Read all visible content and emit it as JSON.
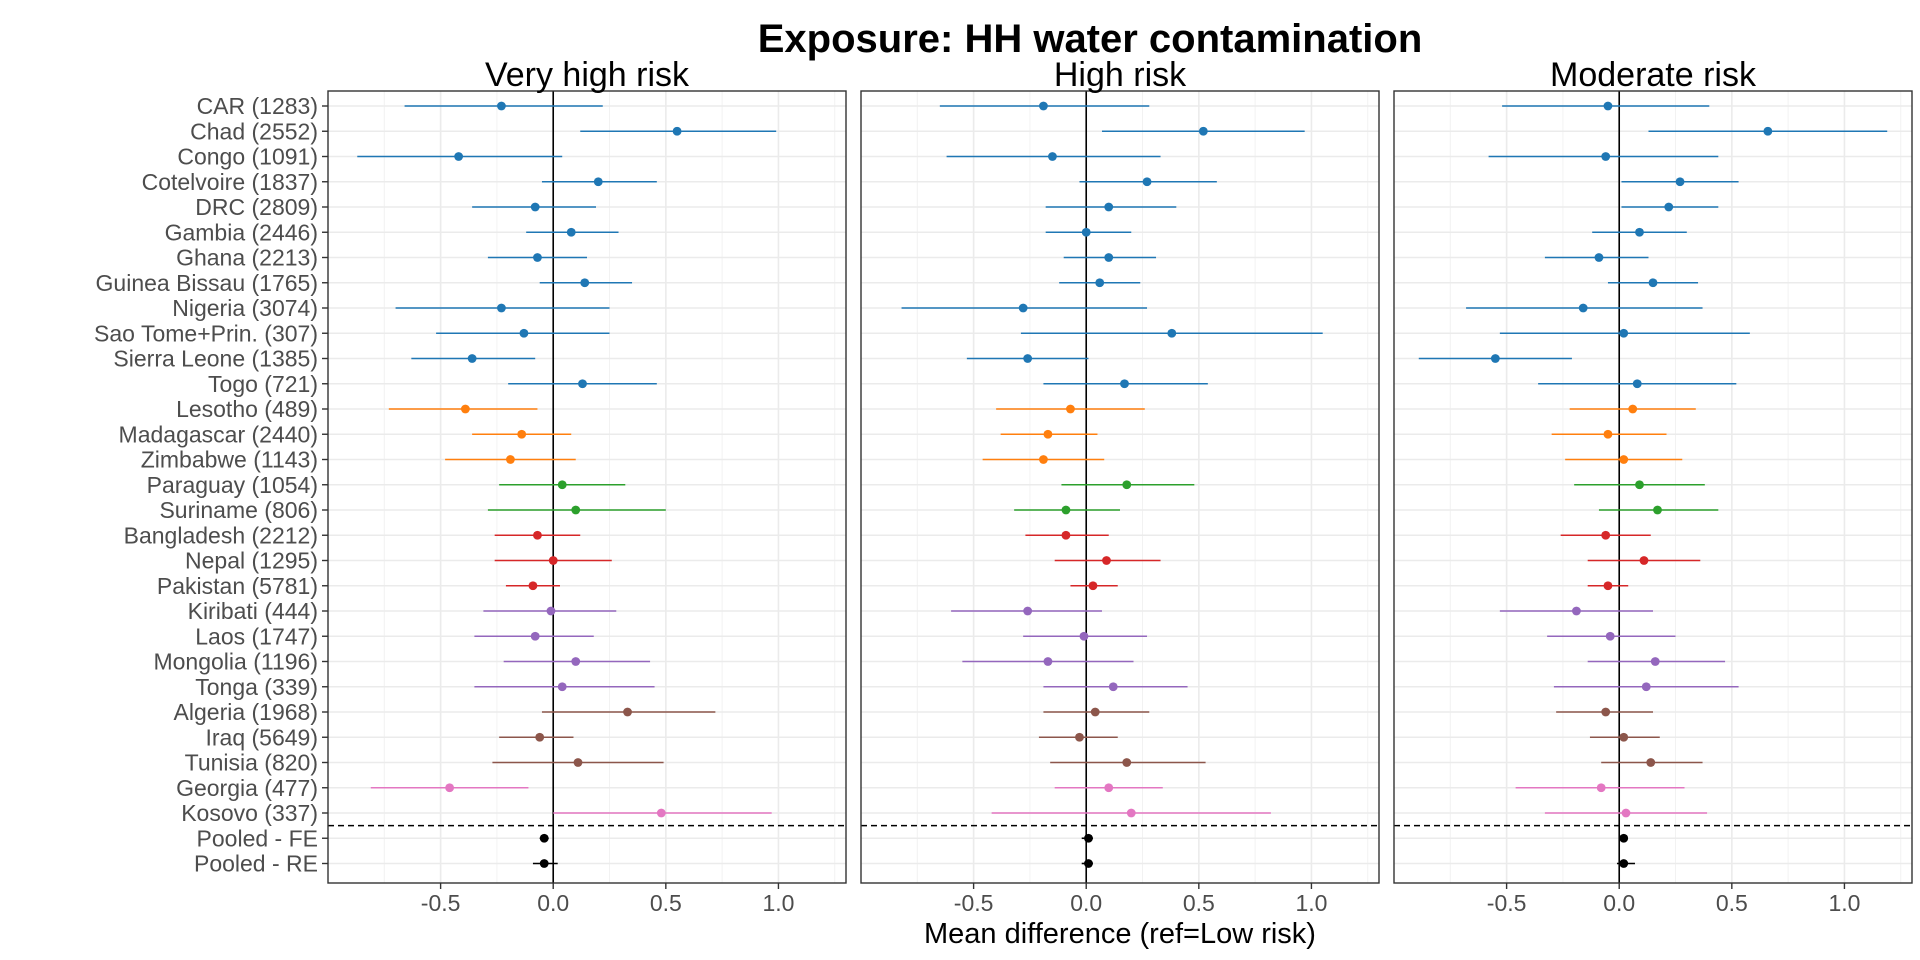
{
  "chart_data": {
    "type": "forest",
    "title": "Exposure: HH water contamination",
    "xlabel": "Mean difference (ref=Low risk)",
    "xlim": [
      -1.0,
      1.3
    ],
    "xticks": [
      -0.5,
      0.0,
      0.5,
      1.0
    ],
    "xtick_labels": [
      "-0.5",
      "0.0",
      "0.5",
      "1.0"
    ],
    "grid": true,
    "reference_line": 0,
    "separator_after_row": "Kosovo (337)",
    "rows": [
      {
        "label": "CAR (1283)",
        "color": "#1f77b4"
      },
      {
        "label": "Chad (2552)",
        "color": "#1f77b4"
      },
      {
        "label": "Congo (1091)",
        "color": "#1f77b4"
      },
      {
        "label": "Cotelvoire (1837)",
        "color": "#1f77b4"
      },
      {
        "label": "DRC (2809)",
        "color": "#1f77b4"
      },
      {
        "label": "Gambia (2446)",
        "color": "#1f77b4"
      },
      {
        "label": "Ghana (2213)",
        "color": "#1f77b4"
      },
      {
        "label": "Guinea Bissau (1765)",
        "color": "#1f77b4"
      },
      {
        "label": "Nigeria (3074)",
        "color": "#1f77b4"
      },
      {
        "label": "Sao Tome+Prin. (307)",
        "color": "#1f77b4"
      },
      {
        "label": "Sierra Leone (1385)",
        "color": "#1f77b4"
      },
      {
        "label": "Togo (721)",
        "color": "#1f77b4"
      },
      {
        "label": "Lesotho (489)",
        "color": "#ff7f0e"
      },
      {
        "label": "Madagascar (2440)",
        "color": "#ff7f0e"
      },
      {
        "label": "Zimbabwe (1143)",
        "color": "#ff7f0e"
      },
      {
        "label": "Paraguay (1054)",
        "color": "#2ca02c"
      },
      {
        "label": "Suriname (806)",
        "color": "#2ca02c"
      },
      {
        "label": "Bangladesh (2212)",
        "color": "#d62728"
      },
      {
        "label": "Nepal (1295)",
        "color": "#d62728"
      },
      {
        "label": "Pakistan (5781)",
        "color": "#d62728"
      },
      {
        "label": "Kiribati (444)",
        "color": "#9467bd"
      },
      {
        "label": "Laos (1747)",
        "color": "#9467bd"
      },
      {
        "label": "Mongolia (1196)",
        "color": "#9467bd"
      },
      {
        "label": "Tonga (339)",
        "color": "#9467bd"
      },
      {
        "label": "Algeria (1968)",
        "color": "#8c564b"
      },
      {
        "label": "Iraq (5649)",
        "color": "#8c564b"
      },
      {
        "label": "Tunisia (820)",
        "color": "#8c564b"
      },
      {
        "label": "Georgia (477)",
        "color": "#e377c2"
      },
      {
        "label": "Kosovo (337)",
        "color": "#e377c2"
      },
      {
        "label": "Pooled - FE",
        "color": "#000000"
      },
      {
        "label": "Pooled - RE",
        "color": "#000000"
      }
    ],
    "panels": [
      {
        "title": "Very high risk",
        "estimates": [
          [
            -0.23,
            -0.66,
            0.22
          ],
          [
            0.55,
            0.12,
            0.99
          ],
          [
            -0.42,
            -0.87,
            0.04
          ],
          [
            0.2,
            -0.05,
            0.46
          ],
          [
            -0.08,
            -0.36,
            0.19
          ],
          [
            0.08,
            -0.12,
            0.29
          ],
          [
            -0.07,
            -0.29,
            0.15
          ],
          [
            0.14,
            -0.06,
            0.35
          ],
          [
            -0.23,
            -0.7,
            0.25
          ],
          [
            -0.13,
            -0.52,
            0.25
          ],
          [
            -0.36,
            -0.63,
            -0.08
          ],
          [
            0.13,
            -0.2,
            0.46
          ],
          [
            -0.39,
            -0.73,
            -0.07
          ],
          [
            -0.14,
            -0.36,
            0.08
          ],
          [
            -0.19,
            -0.48,
            0.1
          ],
          [
            0.04,
            -0.24,
            0.32
          ],
          [
            0.1,
            -0.29,
            0.5
          ],
          [
            -0.07,
            -0.26,
            0.12
          ],
          [
            0.0,
            -0.26,
            0.26
          ],
          [
            -0.09,
            -0.21,
            0.03
          ],
          [
            -0.01,
            -0.31,
            0.28
          ],
          [
            -0.08,
            -0.35,
            0.18
          ],
          [
            0.1,
            -0.22,
            0.43
          ],
          [
            0.04,
            -0.35,
            0.45
          ],
          [
            0.33,
            -0.05,
            0.72
          ],
          [
            -0.06,
            -0.24,
            0.09
          ],
          [
            0.11,
            -0.27,
            0.49
          ],
          [
            -0.46,
            -0.81,
            -0.11
          ],
          [
            0.48,
            0.0,
            0.97
          ],
          [
            -0.04,
            -0.06,
            -0.02
          ],
          [
            -0.04,
            -0.09,
            0.02
          ]
        ]
      },
      {
        "title": "High risk",
        "estimates": [
          [
            -0.19,
            -0.65,
            0.28
          ],
          [
            0.52,
            0.07,
            0.97
          ],
          [
            -0.15,
            -0.62,
            0.33
          ],
          [
            0.27,
            -0.03,
            0.58
          ],
          [
            0.1,
            -0.18,
            0.4
          ],
          [
            0.0,
            -0.18,
            0.2
          ],
          [
            0.1,
            -0.1,
            0.31
          ],
          [
            0.06,
            -0.12,
            0.24
          ],
          [
            -0.28,
            -0.82,
            0.27
          ],
          [
            0.38,
            -0.29,
            1.05
          ],
          [
            -0.26,
            -0.53,
            0.01
          ],
          [
            0.17,
            -0.19,
            0.54
          ],
          [
            -0.07,
            -0.4,
            0.26
          ],
          [
            -0.17,
            -0.38,
            0.05
          ],
          [
            -0.19,
            -0.46,
            0.08
          ],
          [
            0.18,
            -0.11,
            0.48
          ],
          [
            -0.09,
            -0.32,
            0.15
          ],
          [
            -0.09,
            -0.27,
            0.1
          ],
          [
            0.09,
            -0.14,
            0.33
          ],
          [
            0.03,
            -0.07,
            0.14
          ],
          [
            -0.26,
            -0.6,
            0.07
          ],
          [
            -0.01,
            -0.28,
            0.27
          ],
          [
            -0.17,
            -0.55,
            0.21
          ],
          [
            0.12,
            -0.19,
            0.45
          ],
          [
            0.04,
            -0.19,
            0.28
          ],
          [
            -0.03,
            -0.21,
            0.14
          ],
          [
            0.18,
            -0.16,
            0.53
          ],
          [
            0.1,
            -0.14,
            0.34
          ],
          [
            0.2,
            -0.42,
            0.82
          ],
          [
            0.01,
            -0.02,
            0.03
          ],
          [
            0.01,
            -0.02,
            0.03
          ]
        ]
      },
      {
        "title": "Moderate risk",
        "estimates": [
          [
            -0.05,
            -0.52,
            0.4
          ],
          [
            0.66,
            0.13,
            1.19
          ],
          [
            -0.06,
            -0.58,
            0.44
          ],
          [
            0.27,
            0.01,
            0.53
          ],
          [
            0.22,
            0.01,
            0.44
          ],
          [
            0.09,
            -0.12,
            0.3
          ],
          [
            -0.09,
            -0.33,
            0.13
          ],
          [
            0.15,
            -0.05,
            0.35
          ],
          [
            -0.16,
            -0.68,
            0.37
          ],
          [
            0.02,
            -0.53,
            0.58
          ],
          [
            -0.55,
            -0.89,
            -0.21
          ],
          [
            0.08,
            -0.36,
            0.52
          ],
          [
            0.06,
            -0.22,
            0.34
          ],
          [
            -0.05,
            -0.3,
            0.21
          ],
          [
            0.02,
            -0.24,
            0.28
          ],
          [
            0.09,
            -0.2,
            0.38
          ],
          [
            0.17,
            -0.09,
            0.44
          ],
          [
            -0.06,
            -0.26,
            0.14
          ],
          [
            0.11,
            -0.14,
            0.36
          ],
          [
            -0.05,
            -0.14,
            0.04
          ],
          [
            -0.19,
            -0.53,
            0.15
          ],
          [
            -0.04,
            -0.32,
            0.25
          ],
          [
            0.16,
            -0.14,
            0.47
          ],
          [
            0.12,
            -0.29,
            0.53
          ],
          [
            -0.06,
            -0.28,
            0.15
          ],
          [
            0.02,
            -0.13,
            0.18
          ],
          [
            0.14,
            -0.08,
            0.37
          ],
          [
            -0.08,
            -0.46,
            0.29
          ],
          [
            0.03,
            -0.33,
            0.39
          ],
          [
            0.02,
            0.0,
            0.03
          ],
          [
            0.02,
            -0.01,
            0.07
          ]
        ]
      }
    ]
  }
}
